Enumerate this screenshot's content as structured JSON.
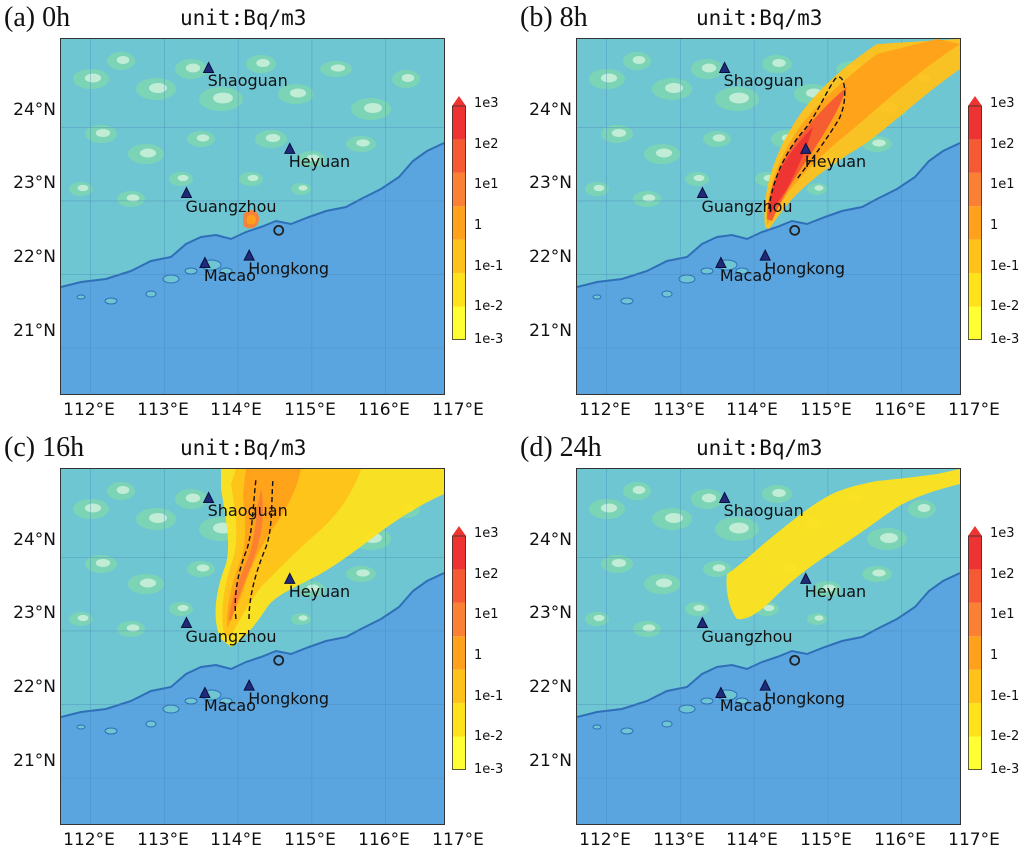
{
  "unit_label": "unit:Bq/m3",
  "lat_labels": [
    "24°N",
    "23°N",
    "22°N",
    "21°N"
  ],
  "lon_labels": [
    "112°E",
    "113°E",
    "114°E",
    "115°E",
    "116°E",
    "117°E"
  ],
  "colorbar": {
    "ticks": [
      "1e3",
      "1e2",
      "1e1",
      "1",
      "1e-1",
      "1e-2",
      "1e-3"
    ],
    "colors": [
      "#ffff33",
      "#ffe21a",
      "#ffc21a",
      "#ffa11a",
      "#fb8033",
      "#f55a33",
      "#ee3333"
    ]
  },
  "colors": {
    "sea": "#5aa5e0",
    "land_low": "#6ec6d3",
    "land_mid": "#7fd6b0",
    "land_high": "#c9efd9",
    "coast": "#2f6fb8"
  },
  "cities": [
    {
      "name": "Shaoguan",
      "lon": 113.6,
      "lat": 24.8
    },
    {
      "name": "Heyuan",
      "lon": 114.7,
      "lat": 23.7
    },
    {
      "name": "Guangzhou",
      "lon": 113.3,
      "lat": 23.1
    },
    {
      "name": "Macao",
      "lon": 113.55,
      "lat": 22.15
    },
    {
      "name": "Hongkong",
      "lon": 114.15,
      "lat": 22.25
    }
  ],
  "source": {
    "lon": 114.55,
    "lat": 22.6
  },
  "panels": [
    {
      "label": "(a) 0h"
    },
    {
      "label": "(b) 8h"
    },
    {
      "label": "(c) 16h"
    },
    {
      "label": "(d) 24h"
    }
  ]
}
